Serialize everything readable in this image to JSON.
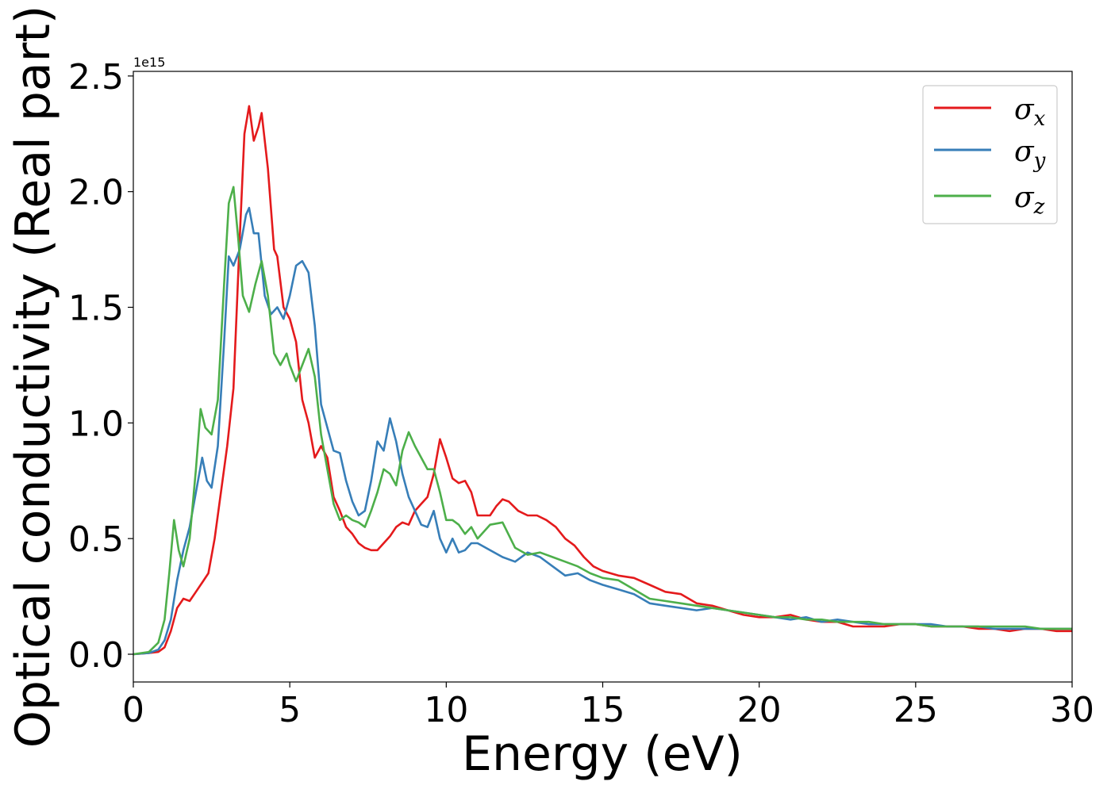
{
  "chart_data": {
    "type": "line",
    "xlabel": "Energy (eV)",
    "ylabel": "Optical conductivity (Real part)",
    "y_offset_label": "1e15",
    "xlim": [
      0,
      30
    ],
    "ylim": [
      -0.12,
      2.52
    ],
    "x_ticks": [
      0,
      5,
      10,
      15,
      20,
      25,
      30
    ],
    "x_tick_labels": [
      "0",
      "5",
      "10",
      "15",
      "20",
      "25",
      "30"
    ],
    "y_ticks": [
      0.0,
      0.5,
      1.0,
      1.5,
      2.0,
      2.5
    ],
    "y_tick_labels": [
      "0.0",
      "0.5",
      "1.0",
      "1.5",
      "2.0",
      "2.5"
    ],
    "grid": false,
    "legend_position": "top-right",
    "series": [
      {
        "name": "σx",
        "legend_symbol": "σ",
        "legend_sub": "x",
        "color": "#e41a1c",
        "x": [
          0,
          0.5,
          0.8,
          1.0,
          1.2,
          1.4,
          1.6,
          1.8,
          2.0,
          2.2,
          2.4,
          2.6,
          2.8,
          3.0,
          3.2,
          3.4,
          3.55,
          3.7,
          3.85,
          4.0,
          4.1,
          4.3,
          4.5,
          4.6,
          4.8,
          5.0,
          5.2,
          5.4,
          5.6,
          5.8,
          6.0,
          6.2,
          6.4,
          6.6,
          6.8,
          7.0,
          7.2,
          7.4,
          7.6,
          7.8,
          8.0,
          8.2,
          8.4,
          8.6,
          8.8,
          9.0,
          9.2,
          9.4,
          9.6,
          9.8,
          10.0,
          10.2,
          10.4,
          10.6,
          10.8,
          11.0,
          11.2,
          11.4,
          11.6,
          11.8,
          12.0,
          12.3,
          12.6,
          12.9,
          13.2,
          13.5,
          13.8,
          14.1,
          14.4,
          14.7,
          15.0,
          15.5,
          16.0,
          16.5,
          17.0,
          17.5,
          18.0,
          18.5,
          19.0,
          19.5,
          20.0,
          20.5,
          21.0,
          21.5,
          22.0,
          22.5,
          23.0,
          23.5,
          24.0,
          24.5,
          25.0,
          25.5,
          26.0,
          26.5,
          27.0,
          27.5,
          28.0,
          28.5,
          29.0,
          29.5,
          30.0
        ],
        "y": [
          0.0,
          0.005,
          0.01,
          0.03,
          0.1,
          0.2,
          0.24,
          0.23,
          0.27,
          0.31,
          0.35,
          0.5,
          0.7,
          0.9,
          1.15,
          1.8,
          2.25,
          2.37,
          2.22,
          2.28,
          2.34,
          2.1,
          1.75,
          1.72,
          1.5,
          1.45,
          1.35,
          1.1,
          1.0,
          0.85,
          0.9,
          0.85,
          0.68,
          0.62,
          0.55,
          0.52,
          0.48,
          0.46,
          0.45,
          0.45,
          0.48,
          0.51,
          0.55,
          0.57,
          0.56,
          0.62,
          0.65,
          0.68,
          0.78,
          0.93,
          0.85,
          0.76,
          0.74,
          0.75,
          0.7,
          0.6,
          0.6,
          0.6,
          0.64,
          0.67,
          0.66,
          0.62,
          0.6,
          0.6,
          0.58,
          0.55,
          0.5,
          0.47,
          0.42,
          0.38,
          0.36,
          0.34,
          0.33,
          0.3,
          0.27,
          0.26,
          0.22,
          0.21,
          0.19,
          0.17,
          0.16,
          0.16,
          0.17,
          0.15,
          0.14,
          0.14,
          0.12,
          0.12,
          0.12,
          0.13,
          0.13,
          0.12,
          0.12,
          0.12,
          0.11,
          0.11,
          0.1,
          0.11,
          0.11,
          0.1,
          0.1
        ]
      },
      {
        "name": "σy",
        "legend_symbol": "σ",
        "legend_sub": "y",
        "color": "#377eb8",
        "x": [
          0,
          0.5,
          0.8,
          1.0,
          1.2,
          1.4,
          1.6,
          1.8,
          2.0,
          2.2,
          2.35,
          2.5,
          2.7,
          2.9,
          3.05,
          3.2,
          3.4,
          3.6,
          3.7,
          3.85,
          4.0,
          4.2,
          4.4,
          4.6,
          4.8,
          5.0,
          5.2,
          5.4,
          5.6,
          5.8,
          6.0,
          6.2,
          6.4,
          6.6,
          6.8,
          7.0,
          7.2,
          7.4,
          7.6,
          7.8,
          8.0,
          8.2,
          8.4,
          8.6,
          8.8,
          9.0,
          9.2,
          9.4,
          9.6,
          9.8,
          10.0,
          10.2,
          10.4,
          10.6,
          10.8,
          11.0,
          11.4,
          11.8,
          12.2,
          12.6,
          13.0,
          13.4,
          13.8,
          14.2,
          14.6,
          15.0,
          15.5,
          16.0,
          16.5,
          17.0,
          17.5,
          18.0,
          18.5,
          19.0,
          19.5,
          20.0,
          20.5,
          21.0,
          21.5,
          22.0,
          22.5,
          23.0,
          23.5,
          24.0,
          24.5,
          25.0,
          25.5,
          26.0,
          26.5,
          27.0,
          27.5,
          28.0,
          28.5,
          29.0,
          29.5,
          30.0
        ],
        "y": [
          0.0,
          0.005,
          0.02,
          0.06,
          0.15,
          0.32,
          0.45,
          0.55,
          0.7,
          0.85,
          0.75,
          0.72,
          0.9,
          1.35,
          1.72,
          1.68,
          1.75,
          1.9,
          1.93,
          1.82,
          1.82,
          1.55,
          1.47,
          1.5,
          1.45,
          1.55,
          1.68,
          1.7,
          1.65,
          1.42,
          1.08,
          0.98,
          0.88,
          0.87,
          0.75,
          0.66,
          0.6,
          0.62,
          0.75,
          0.92,
          0.88,
          1.02,
          0.92,
          0.78,
          0.68,
          0.62,
          0.56,
          0.55,
          0.62,
          0.5,
          0.44,
          0.5,
          0.44,
          0.45,
          0.48,
          0.48,
          0.45,
          0.42,
          0.4,
          0.44,
          0.42,
          0.38,
          0.34,
          0.35,
          0.32,
          0.3,
          0.28,
          0.26,
          0.22,
          0.21,
          0.2,
          0.19,
          0.2,
          0.19,
          0.18,
          0.17,
          0.16,
          0.15,
          0.16,
          0.14,
          0.15,
          0.14,
          0.13,
          0.13,
          0.13,
          0.13,
          0.13,
          0.12,
          0.12,
          0.12,
          0.11,
          0.11,
          0.11,
          0.11,
          0.11,
          0.11
        ]
      },
      {
        "name": "σz",
        "legend_symbol": "σ",
        "legend_sub": "z",
        "color": "#4daf4a",
        "x": [
          0,
          0.5,
          0.8,
          1.0,
          1.15,
          1.3,
          1.45,
          1.6,
          1.8,
          2.0,
          2.15,
          2.3,
          2.5,
          2.7,
          2.9,
          3.05,
          3.2,
          3.35,
          3.5,
          3.7,
          3.9,
          4.1,
          4.3,
          4.5,
          4.7,
          4.9,
          5.0,
          5.2,
          5.4,
          5.6,
          5.8,
          6.0,
          6.2,
          6.4,
          6.6,
          6.8,
          7.0,
          7.2,
          7.4,
          7.6,
          7.8,
          8.0,
          8.2,
          8.4,
          8.6,
          8.8,
          9.0,
          9.2,
          9.4,
          9.6,
          9.8,
          10.0,
          10.2,
          10.4,
          10.6,
          10.8,
          11.0,
          11.4,
          11.8,
          12.2,
          12.6,
          13.0,
          13.4,
          13.8,
          14.2,
          14.6,
          15.0,
          15.5,
          16.0,
          16.5,
          17.0,
          17.5,
          18.0,
          18.5,
          19.0,
          19.5,
          20.0,
          20.5,
          21.0,
          21.5,
          22.0,
          22.5,
          23.0,
          23.5,
          24.0,
          24.5,
          25.0,
          25.5,
          26.0,
          26.5,
          27.0,
          27.5,
          28.0,
          28.5,
          29.0,
          29.5,
          30.0
        ],
        "y": [
          0.0,
          0.01,
          0.05,
          0.15,
          0.35,
          0.58,
          0.45,
          0.38,
          0.5,
          0.8,
          1.06,
          0.98,
          0.95,
          1.1,
          1.6,
          1.95,
          2.02,
          1.8,
          1.55,
          1.48,
          1.6,
          1.7,
          1.55,
          1.3,
          1.25,
          1.3,
          1.25,
          1.18,
          1.25,
          1.32,
          1.2,
          0.95,
          0.8,
          0.65,
          0.58,
          0.6,
          0.58,
          0.57,
          0.55,
          0.62,
          0.7,
          0.8,
          0.78,
          0.73,
          0.88,
          0.96,
          0.9,
          0.85,
          0.8,
          0.8,
          0.7,
          0.58,
          0.58,
          0.56,
          0.52,
          0.55,
          0.5,
          0.56,
          0.57,
          0.46,
          0.43,
          0.44,
          0.42,
          0.4,
          0.38,
          0.35,
          0.33,
          0.32,
          0.28,
          0.24,
          0.23,
          0.22,
          0.21,
          0.2,
          0.19,
          0.18,
          0.17,
          0.16,
          0.16,
          0.15,
          0.15,
          0.14,
          0.14,
          0.14,
          0.13,
          0.13,
          0.13,
          0.12,
          0.12,
          0.12,
          0.12,
          0.12,
          0.12,
          0.12,
          0.11,
          0.11,
          0.11
        ]
      }
    ]
  }
}
